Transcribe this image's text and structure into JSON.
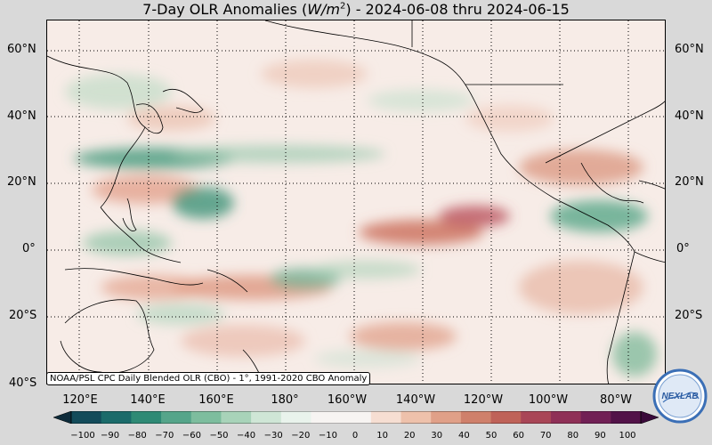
{
  "title": {
    "prefix": "7-Day OLR Anomalies (",
    "unit_base": "W/m",
    "unit_exp": "2",
    "suffix": ") - 2024-06-08 thru 2024-06-15"
  },
  "map": {
    "lat_labels": [
      "60°N",
      "40°N",
      "20°N",
      "0°",
      "20°S",
      "40°S"
    ],
    "lon_labels": [
      "120°E",
      "140°E",
      "160°E",
      "180°",
      "160°W",
      "140°W",
      "120°W",
      "100°W",
      "80°W"
    ],
    "credit": "NOAA/PSL CPC Daily Blended OLR (CBO) - 1°, 1991-2020 CBO Anomaly",
    "land_outline_color": "#000000",
    "grid_line_style": "dotted"
  },
  "colorbar": {
    "ticks": [
      "−100",
      "−90",
      "−80",
      "−70",
      "−60",
      "−50",
      "−40",
      "−30",
      "−20",
      "−10",
      "0",
      "10",
      "20",
      "30",
      "40",
      "50",
      "60",
      "70",
      "80",
      "90",
      "100"
    ],
    "colors": [
      "#0d2b3a",
      "#134b5a",
      "#1b6b6a",
      "#2f8a75",
      "#55a58a",
      "#7dbd9e",
      "#a8d3b9",
      "#cfe6d6",
      "#e9f3ec",
      "#f7f4f2",
      "#f7f4f2",
      "#f6ded2",
      "#eec1ab",
      "#e0a088",
      "#cf806b",
      "#bf6258",
      "#a94657",
      "#8f3057",
      "#712055",
      "#521248",
      "#3a0a3a"
    ]
  },
  "logo": {
    "text": "NEXLAB",
    "ring_color": "#3b6fb6"
  }
}
